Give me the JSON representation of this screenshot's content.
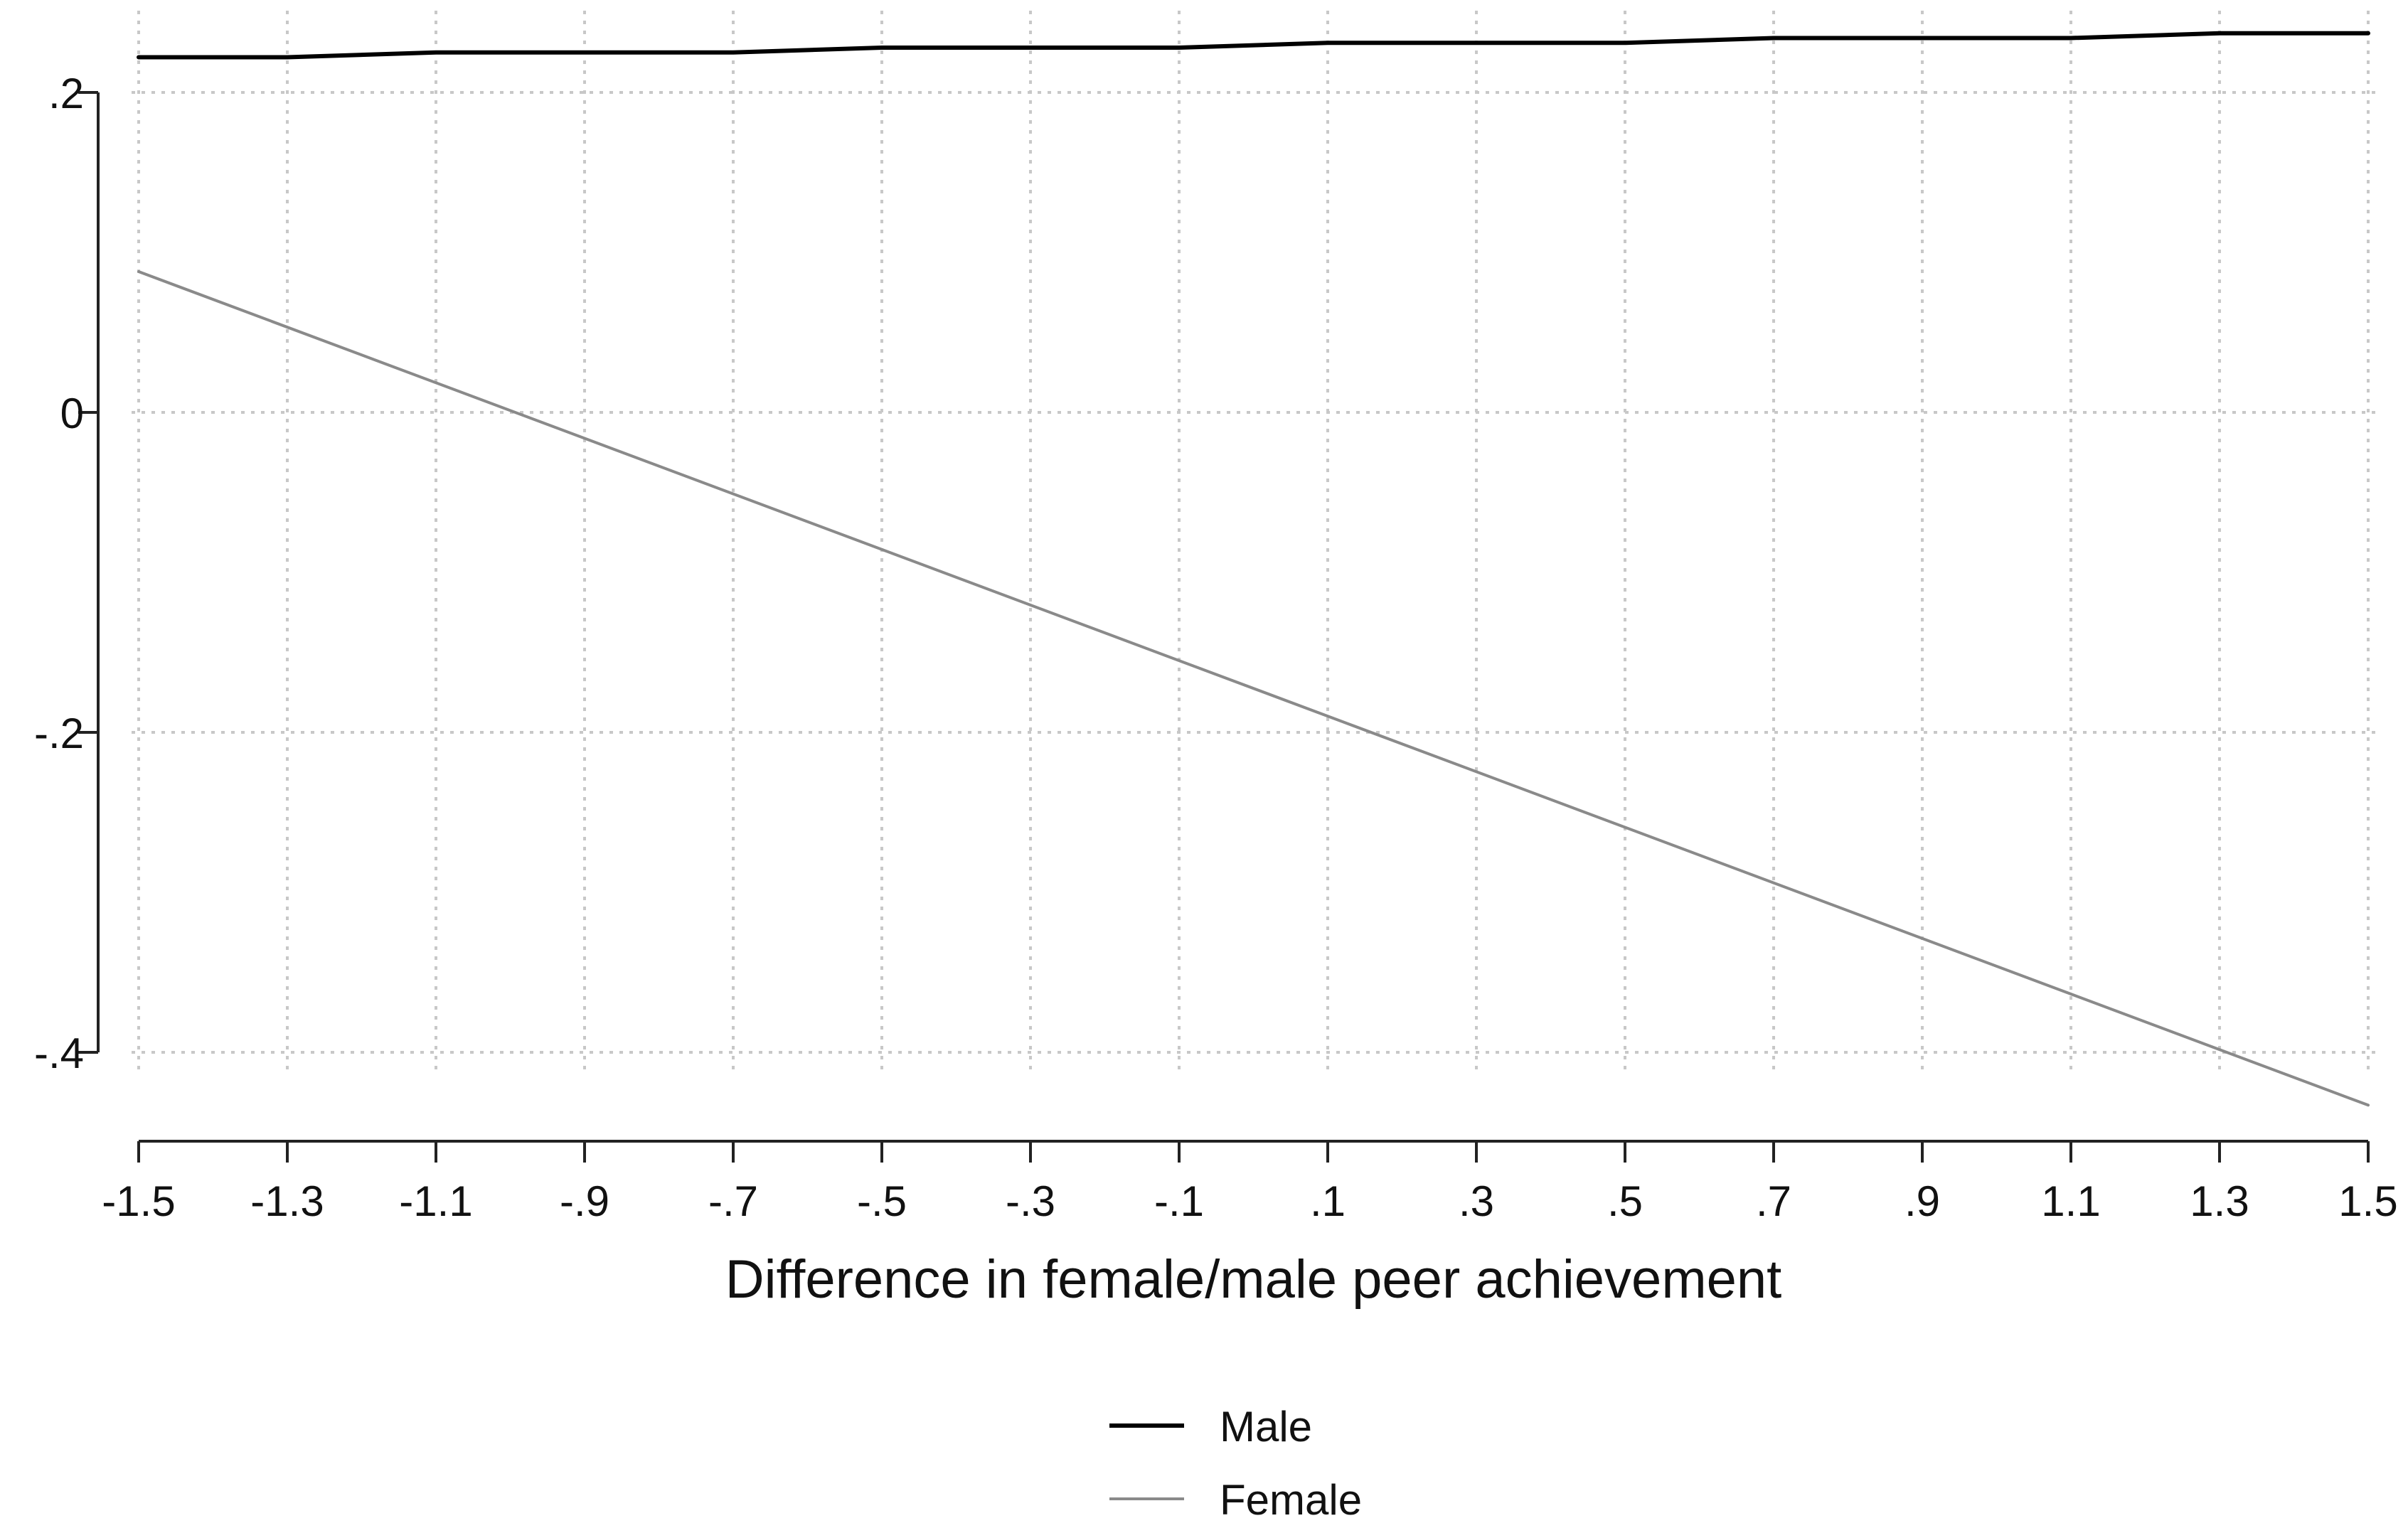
{
  "chart_data": {
    "type": "line",
    "title": "",
    "xlabel": "Difference in female/male peer achievement",
    "ylabel": "",
    "xlim": [
      -1.5,
      1.5
    ],
    "ylim": [
      -0.4,
      0.2
    ],
    "x_ticks": [
      -1.5,
      -1.3,
      -1.1,
      -0.9,
      -0.7,
      -0.5,
      -0.3,
      -0.1,
      0.1,
      0.3,
      0.5,
      0.7,
      0.9,
      1.1,
      1.3,
      1.5
    ],
    "x_tick_labels": [
      "-1.5",
      "-1.3",
      "-1.1",
      "-.9",
      "-.7",
      "-.5",
      "-.3",
      "-.1",
      ".1",
      ".3",
      ".5",
      ".7",
      ".9",
      "1.1",
      "1.3",
      "1.5"
    ],
    "y_ticks": [
      0.2,
      0,
      -0.2,
      -0.4
    ],
    "y_tick_labels": [
      ".2",
      "0",
      "-.2",
      "-.4"
    ],
    "grid": true,
    "legend_position": "bottom-center",
    "series": [
      {
        "name": "Male",
        "color": "#000000",
        "x": [
          -1.5,
          -1.3,
          -1.1,
          -0.9,
          -0.7,
          -0.5,
          -0.3,
          -0.1,
          0.1,
          0.3,
          0.5,
          0.7,
          0.9,
          1.1,
          1.3,
          1.5
        ],
        "y": [
          0.222,
          0.222,
          0.225,
          0.225,
          0.225,
          0.228,
          0.228,
          0.228,
          0.231,
          0.231,
          0.231,
          0.234,
          0.234,
          0.234,
          0.237,
          0.237
        ]
      },
      {
        "name": "Female",
        "color": "#8a8a8a",
        "x": [
          -1.5,
          1.5
        ],
        "y": [
          0.088,
          -0.433
        ]
      }
    ]
  }
}
